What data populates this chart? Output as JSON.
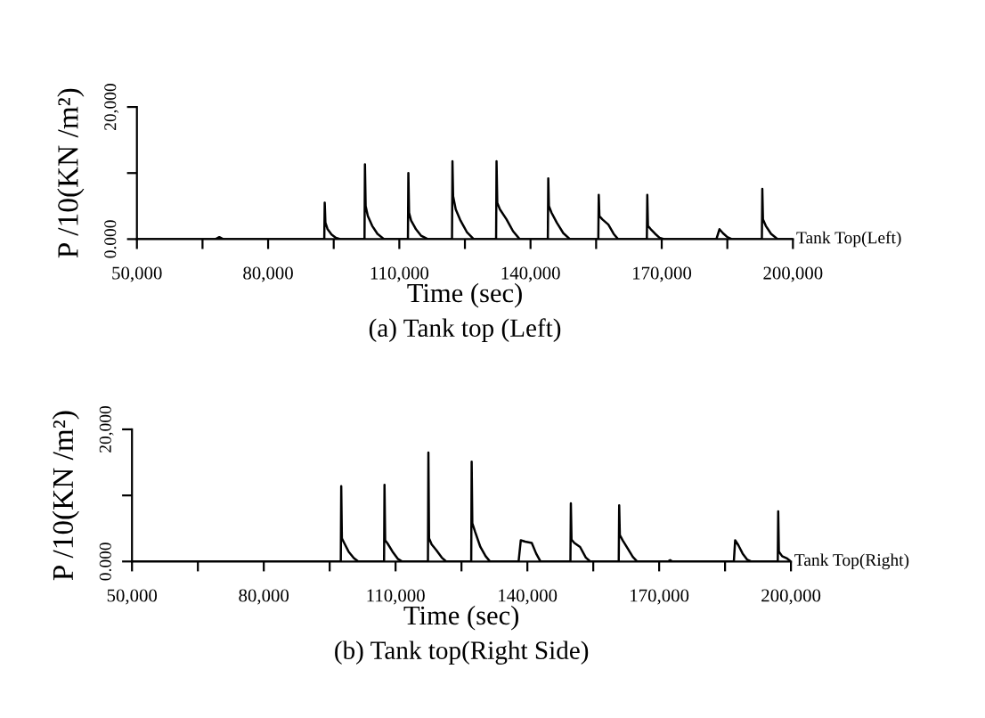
{
  "chart_data": [
    {
      "type": "line",
      "title": "(a) Tank top (Left)",
      "xlabel": "Time (sec)",
      "ylabel": "P /10(KN /m²)",
      "annotations": [
        "Tank Top(Left)"
      ],
      "xlim": [
        50000,
        200000
      ],
      "xticks": [
        {
          "value": 50000,
          "label": "50,000"
        },
        {
          "value": 65000,
          "label": null
        },
        {
          "value": 80000,
          "label": "80,000"
        },
        {
          "value": 95000,
          "label": null
        },
        {
          "value": 110000,
          "label": "110,000"
        },
        {
          "value": 125000,
          "label": null
        },
        {
          "value": 140000,
          "label": "140,000"
        },
        {
          "value": 155000,
          "label": null
        },
        {
          "value": 170000,
          "label": "170,000"
        },
        {
          "value": 185000,
          "label": null
        },
        {
          "value": 200000,
          "label": "200,000"
        }
      ],
      "ylim": [
        0,
        20000
      ],
      "yticks": [
        {
          "value": 0,
          "label": "0.000"
        },
        {
          "value": 10000,
          "label": null
        },
        {
          "value": 20000,
          "label": "20,000"
        }
      ],
      "grid": false,
      "legend": false,
      "marker": "none",
      "line_style": "solid",
      "series": [
        {
          "color": "#000000",
          "x": [
            50000,
            68000,
            68840,
            69700,
            92840,
            92940,
            93100,
            93600,
            94500,
            95500,
            96500,
            102040,
            102140,
            102300,
            102800,
            103800,
            105000,
            106500,
            111970,
            112070,
            112230,
            112700,
            113800,
            115000,
            116500,
            122050,
            122150,
            122300,
            122900,
            124000,
            125500,
            127000,
            132130,
            132230,
            132400,
            133000,
            134500,
            136000,
            137500,
            143960,
            144060,
            144200,
            144800,
            146000,
            147500,
            149000,
            155500,
            155600,
            155750,
            156400,
            157800,
            159000,
            160000,
            166600,
            166700,
            166850,
            167500,
            168500,
            169500,
            170500,
            182500,
            183200,
            184000,
            185000,
            186000,
            192900,
            193000,
            193150,
            193800,
            195000,
            196500,
            200000
          ],
          "values": [
            0,
            0,
            300,
            0,
            0,
            5500,
            2500,
            1500,
            700,
            200,
            0,
            0,
            11300,
            5000,
            3500,
            2000,
            800,
            0,
            0,
            10000,
            4000,
            2800,
            1500,
            500,
            0,
            0,
            11800,
            6500,
            4500,
            2800,
            1000,
            0,
            0,
            11800,
            5500,
            4500,
            3000,
            1200,
            0,
            0,
            9200,
            5000,
            4000,
            2500,
            900,
            0,
            0,
            6700,
            3500,
            3000,
            2200,
            800,
            0,
            0,
            6700,
            2000,
            1500,
            800,
            200,
            0,
            0,
            1500,
            900,
            300,
            0,
            0,
            7600,
            3000,
            2000,
            800,
            0,
            0
          ]
        }
      ]
    },
    {
      "type": "line",
      "title": "(b) Tank top(Right Side)",
      "xlabel": "Time (sec)",
      "ylabel": "P /10(KN /m²)",
      "annotations": [
        "Tank Top(Right)"
      ],
      "xlim": [
        50000,
        200000
      ],
      "xticks": [
        {
          "value": 50000,
          "label": "50,000"
        },
        {
          "value": 65000,
          "label": null
        },
        {
          "value": 80000,
          "label": "80,000"
        },
        {
          "value": 95000,
          "label": null
        },
        {
          "value": 110000,
          "label": "110,000"
        },
        {
          "value": 125000,
          "label": null
        },
        {
          "value": 140000,
          "label": "140,000"
        },
        {
          "value": 155000,
          "label": null
        },
        {
          "value": 170000,
          "label": "170,000"
        },
        {
          "value": 185000,
          "label": null
        },
        {
          "value": 200000,
          "label": "200,000"
        }
      ],
      "ylim": [
        0,
        20000
      ],
      "yticks": [
        {
          "value": 0,
          "label": "0.000"
        },
        {
          "value": 10000,
          "label": null
        },
        {
          "value": 20000,
          "label": "20,000"
        }
      ],
      "grid": false,
      "legend": false,
      "marker": "none",
      "line_style": "solid",
      "series": [
        {
          "color": "#000000",
          "x": [
            50000,
            97530,
            97630,
            97780,
            98300,
            99300,
            100500,
            101500,
            107380,
            107480,
            107630,
            108200,
            109300,
            110500,
            111500,
            117370,
            117470,
            117620,
            118200,
            119300,
            120500,
            121500,
            127220,
            127320,
            127470,
            128100,
            129300,
            130500,
            131500,
            138000,
            138500,
            139500,
            141000,
            142000,
            143000,
            149800,
            149900,
            150050,
            150700,
            152000,
            153300,
            154300,
            160800,
            160900,
            161050,
            161700,
            162800,
            164000,
            165000,
            172000,
            172500,
            173000,
            187000,
            187300,
            188000,
            189000,
            190000,
            191000,
            197000,
            197100,
            197250,
            198000,
            199000,
            200000
          ],
          "values": [
            0,
            0,
            11400,
            3500,
            2800,
            1500,
            500,
            0,
            0,
            11600,
            3200,
            2700,
            1500,
            400,
            0,
            0,
            16500,
            3500,
            2600,
            1700,
            600,
            0,
            0,
            15100,
            5800,
            4500,
            2200,
            800,
            0,
            0,
            3200,
            3000,
            2800,
            1200,
            0,
            0,
            8800,
            3300,
            2800,
            2200,
            600,
            0,
            0,
            8500,
            4000,
            3200,
            2000,
            700,
            0,
            0,
            200,
            0,
            0,
            3200,
            2500,
            1200,
            300,
            0,
            0,
            7600,
            1500,
            800,
            500,
            0
          ]
        }
      ]
    }
  ]
}
